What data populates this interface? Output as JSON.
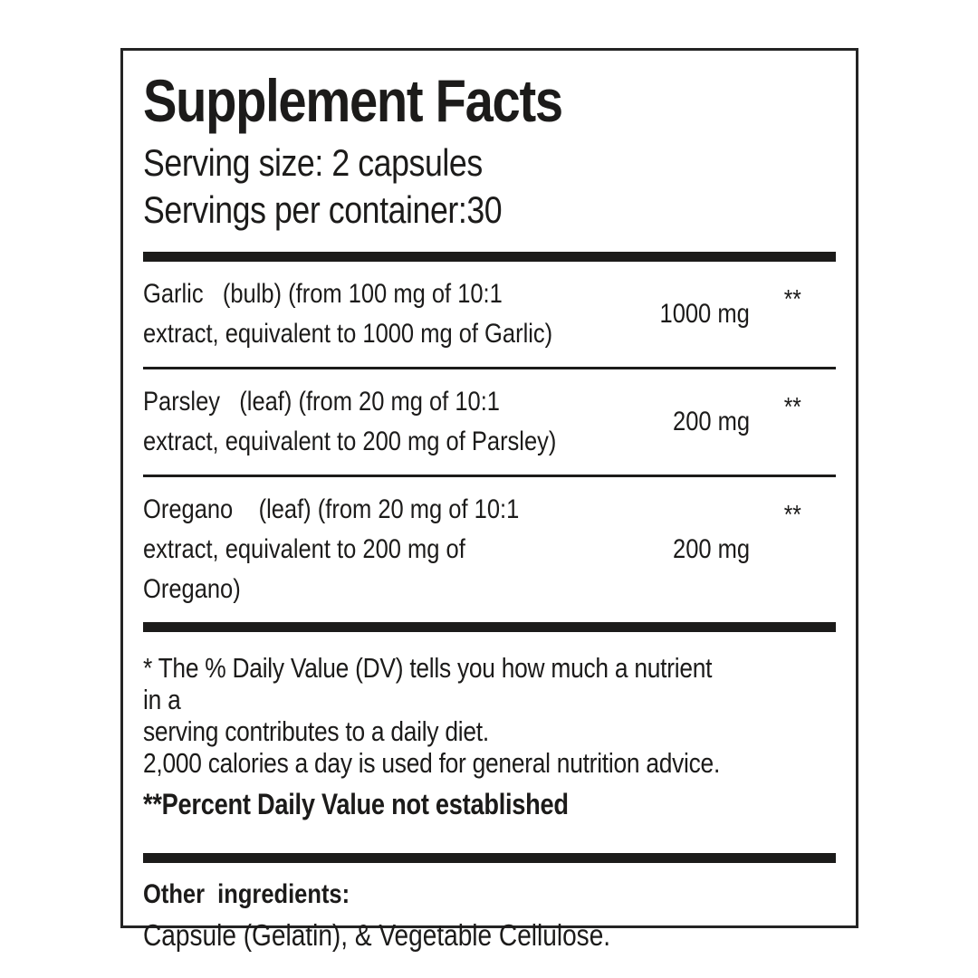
{
  "panel": {
    "title": "Supplement Facts",
    "serving": {
      "size_line": "Serving size: 2 capsules",
      "container_line": "Servings per container:30"
    },
    "table": {
      "rows": [
        {
          "name": "Garlic   (bulb) (from 100 mg of 10:1\nextract, equivalent to 1000 mg of Garlic)",
          "amount": "1000 mg",
          "daily_value": "**"
        },
        {
          "name": "Parsley   (leaf) (from 20 mg of 10:1\nextract, equivalent to 200 mg of Parsley)",
          "amount": "200 mg",
          "daily_value": "**"
        },
        {
          "name": "Oregano    (leaf) (from 20 mg of 10:1\nextract, equivalent to 200 mg of Oregano)",
          "amount": "200 mg",
          "daily_value": "**"
        }
      ]
    },
    "footnotes": {
      "daily_value_note": "* The % Daily Value (DV) tells you how much a nutrient in a\nserving contributes to a daily diet.",
      "calories_note": "2,000 calories a day is used for general nutrition advice.",
      "not_established_note": "**Percent Daily Value not established"
    },
    "other_ingredients": {
      "heading": "Other  ingredients:",
      "text": "Capsule (Gelatin), & Vegetable Cellulose."
    },
    "colors": {
      "ink": "#1c1b1a",
      "background": "#ffffff"
    }
  }
}
